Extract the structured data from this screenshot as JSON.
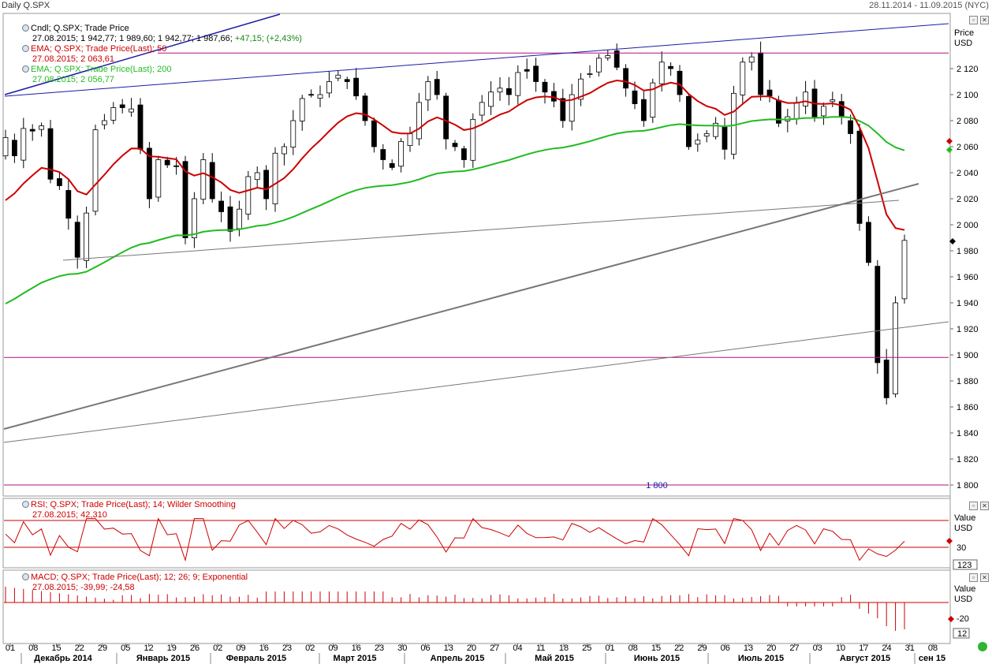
{
  "window": {
    "title": "Daily Q.SPX",
    "date_range": "28.11.2014 - 11.09.2015 (NYC)"
  },
  "main_panel": {
    "axis_title": "Price",
    "axis_unit": "USD",
    "legends": [
      {
        "name": "Cndl; Q.SPX; Trade Price",
        "values": "27.08.2015; 1 942,77; 1 989,60; 1 942,77; 1 987,66;",
        "change": "+47,15; (+2,43%)",
        "color": "#000000"
      },
      {
        "name": "EMA; Q.SPX; Trade Price(Last);  50",
        "values": "27.08.2015; 2 063,61",
        "color": "#cc0000"
      },
      {
        "name": "EMA; Q.SPX; Trade Price(Last);  200",
        "values": "27.08.2015; 2 056,77",
        "color": "#22bb22"
      }
    ],
    "y_ticks": [
      "2 120",
      "2 100",
      "2 080",
      "2 060",
      "2 040",
      "2 020",
      "2 000",
      "1 980",
      "1 960",
      "1 940",
      "1 920",
      "1 900",
      "1 880",
      "1 860",
      "1 840",
      "1 820",
      "1 800"
    ],
    "hline_label": "1 800"
  },
  "rsi_panel": {
    "legend_name": "RSI; Q.SPX; Trade Price(Last);  14; Wilder Smoothing",
    "legend_values": "27.08.2015; 42,310",
    "axis_title": "Value",
    "axis_unit": "USD",
    "level_label": "30",
    "last_label": "123"
  },
  "macd_panel": {
    "legend_name": "MACD; Q.SPX; Trade Price(Last);  12; 26; 9; Exponential",
    "legend_values": "27.08.2015; -39,99; -24,58",
    "axis_title": "Value",
    "axis_unit": "USD",
    "level_label": "-20",
    "last_label": "12"
  },
  "x_axis": {
    "day_ticks": [
      "01",
      "08",
      "15",
      "22",
      "29",
      "05",
      "12",
      "19",
      "26",
      "02",
      "09",
      "16",
      "23",
      "02",
      "09",
      "16",
      "23",
      "30",
      "06",
      "13",
      "20",
      "27",
      "04",
      "11",
      "18",
      "25",
      "01",
      "08",
      "15",
      "22",
      "29",
      "06",
      "13",
      "20",
      "27",
      "03",
      "10",
      "17",
      "24",
      "31",
      "08"
    ],
    "months": [
      "Декабрь 2014",
      "Январь 2015",
      "Февраль 2015",
      "Март 2015",
      "Апрель 2015",
      "Май 2015",
      "Июнь 2015",
      "Июль 2015",
      "Август 2015",
      "сен 15"
    ]
  },
  "colors": {
    "ema50": "#cc0000",
    "ema200": "#22bb22",
    "trend_blue": "#1a1aa8",
    "magenta": "#b0107a",
    "gray": "#777777",
    "rsi": "#cc0000",
    "macd": "#cc0000"
  },
  "chart_data": {
    "type": "candlestick",
    "title": "Daily Q.SPX",
    "ylabel": "Price USD",
    "ylim": [
      1797,
      2138
    ],
    "series": [
      {
        "name": "Cndl; Q.SPX; Trade Price",
        "candles_approx_close": [
          2067,
          2053,
          2074,
          2072,
          2076,
          2035,
          2030,
          2005,
          1975,
          2009,
          2073,
          2080,
          2090,
          2090,
          2089,
          2058,
          2020,
          2050,
          2046,
          2045,
          1990,
          2020,
          2050,
          2020,
          2010,
          1995,
          2012,
          2037,
          2040,
          2020,
          2055,
          2060,
          2080,
          2097,
          2100,
          2100,
          2110,
          2115,
          2110,
          2099,
          2080,
          2060,
          2050,
          2044,
          2064,
          2070,
          2094,
          2110,
          2100,
          2066,
          2060,
          2050,
          2081,
          2094,
          2102,
          2105,
          2100,
          2117,
          2118,
          2110,
          2102,
          2095,
          2080,
          2100,
          2112,
          2116,
          2128,
          2130,
          2121,
          2105,
          2093,
          2080,
          2109,
          2125,
          2120,
          2100,
          2060,
          2065,
          2070,
          2078,
          2058,
          2101,
          2125,
          2129,
          2100,
          2099,
          2078,
          2083,
          2094,
          2102,
          2083,
          2091,
          2096,
          2083,
          2070,
          2001,
          1971,
          1894,
          1867,
          1940,
          1988
        ]
      },
      {
        "name": "EMA; Q.SPX; Trade Price(Last);  50",
        "last": 2063.61
      },
      {
        "name": "EMA; Q.SPX; Trade Price(Last);  200",
        "last": 2056.77
      }
    ],
    "horizontal_lines": [
      2132,
      1898,
      1800
    ],
    "indicators": [
      {
        "name": "RSI; Q.SPX; Trade Price(Last);  14; Wilder Smoothing",
        "last": 42.31,
        "levels": [
          70,
          30
        ]
      },
      {
        "name": "MACD; Q.SPX; Trade Price(Last);  12; 26; 9; Exponential",
        "last": [
          -39.99,
          -24.58
        ]
      }
    ]
  }
}
